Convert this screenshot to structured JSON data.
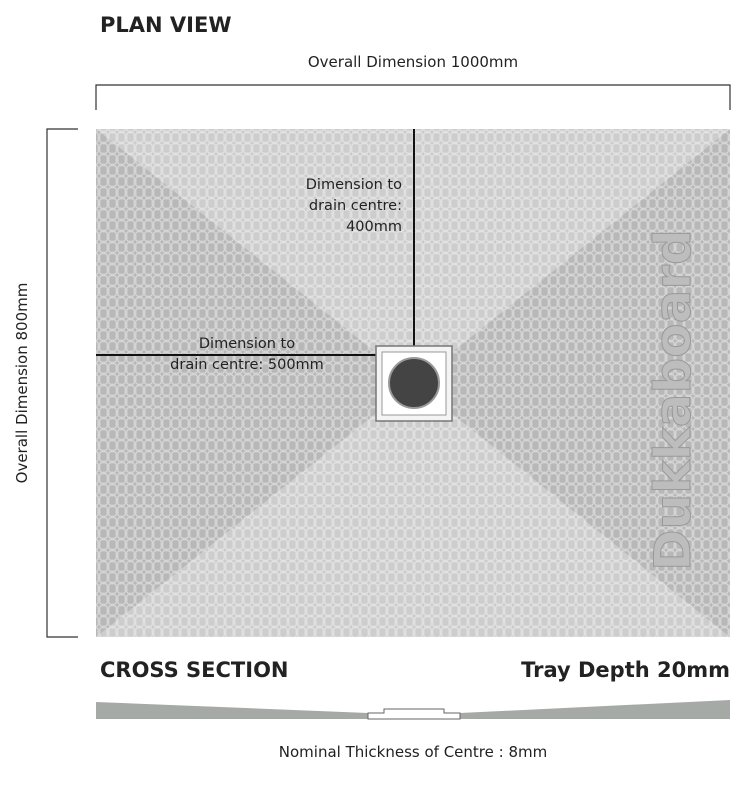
{
  "plan_view": {
    "title": "PLAN VIEW",
    "overall_width": "Overall Dimension 1000mm",
    "overall_height": "Overall Dimension 800mm",
    "drain_vertical_label": [
      "Dimension to",
      "drain centre:",
      "400mm"
    ],
    "drain_horizontal_label": [
      "Dimension to",
      "drain centre: 500mm"
    ],
    "brand": "Dukkaboard"
  },
  "cross_section": {
    "title": "CROSS SECTION",
    "tray_depth": "Tray Depth 20mm",
    "centre_thickness": "Nominal Thickness of Centre : 8mm"
  }
}
